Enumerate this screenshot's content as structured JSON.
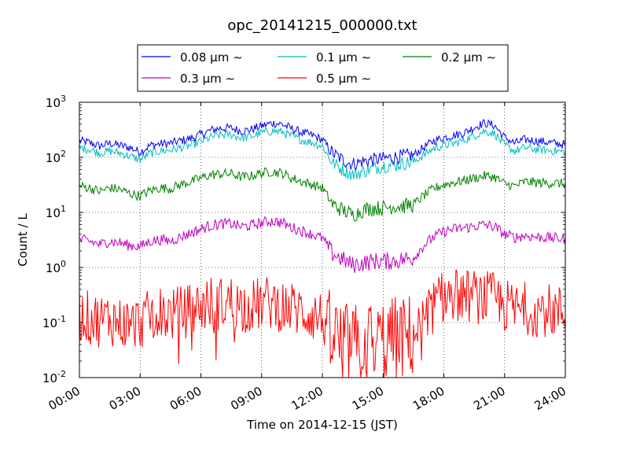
{
  "chart_data": {
    "type": "line",
    "title": "opc_20141215_000000.txt",
    "xlabel": "Time on 2014-12-15 (JST)",
    "ylabel": "Count / L",
    "x_unit": "hours",
    "xlim": [
      0,
      24
    ],
    "ylim": [
      0.01,
      1000
    ],
    "yscale": "log",
    "grid": true,
    "legend_position": "top-center-outside",
    "x_ticks": [
      {
        "value": 0,
        "label": "00:00"
      },
      {
        "value": 3,
        "label": "03:00"
      },
      {
        "value": 6,
        "label": "06:00"
      },
      {
        "value": 9,
        "label": "09:00"
      },
      {
        "value": 12,
        "label": "12:00"
      },
      {
        "value": 15,
        "label": "15:00"
      },
      {
        "value": 18,
        "label": "18:00"
      },
      {
        "value": 21,
        "label": "21:00"
      },
      {
        "value": 24,
        "label": "24:00"
      }
    ],
    "y_ticks": [
      {
        "value": 0.01,
        "base": "10",
        "exp": "-2"
      },
      {
        "value": 0.1,
        "base": "10",
        "exp": "-1"
      },
      {
        "value": 1,
        "base": "10",
        "exp": "0"
      },
      {
        "value": 10,
        "base": "10",
        "exp": "1"
      },
      {
        "value": 100,
        "base": "10",
        "exp": "2"
      },
      {
        "value": 1000,
        "base": "10",
        "exp": "3"
      }
    ],
    "series": [
      {
        "name": "0.08 μm ∼",
        "color": "#0000ff",
        "jitter": 0.08,
        "x": [
          0,
          0.5,
          1,
          1.5,
          2,
          2.5,
          3,
          3.5,
          4,
          4.5,
          5,
          5.5,
          6,
          6.5,
          7,
          7.5,
          8,
          8.5,
          9,
          9.5,
          10,
          10.5,
          11,
          11.5,
          12,
          12.5,
          13,
          13.5,
          14,
          14.5,
          15,
          15.5,
          16,
          16.5,
          17,
          17.5,
          18,
          18.5,
          19,
          19.5,
          20,
          20.5,
          21,
          21.5,
          22,
          22.5,
          23,
          23.5,
          24
        ],
        "y": [
          200,
          185,
          160,
          180,
          165,
          150,
          125,
          165,
          175,
          180,
          200,
          220,
          260,
          310,
          340,
          340,
          300,
          320,
          370,
          420,
          400,
          330,
          280,
          250,
          210,
          120,
          90,
          75,
          85,
          90,
          95,
          100,
          105,
          110,
          150,
          200,
          230,
          250,
          280,
          350,
          420,
          380,
          230,
          180,
          210,
          200,
          190,
          180,
          170
        ]
      },
      {
        "name": "0.1 μm ∼",
        "color": "#00bfbf",
        "jitter": 0.08,
        "x": [
          0,
          0.5,
          1,
          1.5,
          2,
          2.5,
          3,
          3.5,
          4,
          4.5,
          5,
          5.5,
          6,
          6.5,
          7,
          7.5,
          8,
          8.5,
          9,
          9.5,
          10,
          10.5,
          11,
          11.5,
          12,
          12.5,
          13,
          13.5,
          14,
          14.5,
          15,
          15.5,
          16,
          16.5,
          17,
          17.5,
          18,
          18.5,
          19,
          19.5,
          20,
          20.5,
          21,
          21.5,
          22,
          22.5,
          23,
          23.5,
          24
        ],
        "y": [
          150,
          140,
          120,
          130,
          120,
          105,
          90,
          120,
          130,
          135,
          150,
          165,
          195,
          230,
          255,
          260,
          225,
          240,
          280,
          300,
          290,
          240,
          205,
          185,
          160,
          80,
          60,
          48,
          55,
          63,
          70,
          72,
          77,
          82,
          110,
          145,
          165,
          180,
          205,
          250,
          300,
          270,
          165,
          130,
          150,
          140,
          135,
          130,
          125
        ]
      },
      {
        "name": "0.2 μm ∼",
        "color": "#008000",
        "jitter": 0.09,
        "x": [
          0,
          0.5,
          1,
          1.5,
          2,
          2.5,
          3,
          3.5,
          4,
          4.5,
          5,
          5.5,
          6,
          6.5,
          7,
          7.5,
          8,
          8.5,
          9,
          9.5,
          10,
          10.5,
          11,
          11.5,
          12,
          12.5,
          13,
          13.5,
          14,
          14.5,
          15,
          15.5,
          16,
          16.5,
          17,
          17.5,
          18,
          18.5,
          19,
          19.5,
          20,
          20.5,
          21,
          21.5,
          22,
          22.5,
          23,
          23.5,
          24
        ],
        "y": [
          30,
          28,
          24,
          28,
          26,
          22,
          20,
          25,
          28,
          27,
          32,
          36,
          42,
          48,
          50,
          50,
          44,
          46,
          52,
          55,
          52,
          42,
          36,
          32,
          28,
          14,
          11,
          9,
          11,
          12,
          12,
          13,
          13,
          14,
          20,
          27,
          32,
          35,
          38,
          42,
          46,
          44,
          33,
          30,
          36,
          35,
          34,
          34,
          33
        ]
      },
      {
        "name": "0.3 μm ∼",
        "color": "#bf00bf",
        "jitter": 0.1,
        "x": [
          0,
          0.5,
          1,
          1.5,
          2,
          2.5,
          3,
          3.5,
          4,
          4.5,
          5,
          5.5,
          6,
          6.5,
          7,
          7.5,
          8,
          8.5,
          9,
          9.5,
          10,
          10.5,
          11,
          11.5,
          12,
          12.5,
          13,
          13.5,
          14,
          14.5,
          15,
          15.5,
          16,
          16.5,
          17,
          17.5,
          18,
          18.5,
          19,
          19.5,
          20,
          20.5,
          21,
          21.5,
          22,
          22.5,
          23,
          23.5,
          24
        ],
        "y": [
          3.2,
          3.0,
          2.6,
          3.0,
          2.8,
          2.5,
          2.4,
          3.0,
          3.2,
          3.0,
          3.6,
          4.2,
          5.0,
          5.8,
          6.2,
          6.2,
          5.5,
          5.8,
          6.5,
          7.0,
          6.5,
          5.3,
          4.6,
          4.0,
          3.4,
          1.8,
          1.4,
          1.1,
          1.2,
          1.3,
          1.3,
          1.3,
          1.4,
          1.5,
          2.5,
          3.6,
          4.5,
          5.0,
          5.2,
          5.6,
          6.0,
          5.5,
          4.0,
          3.5,
          3.8,
          3.6,
          3.5,
          3.4,
          3.3
        ]
      },
      {
        "name": "0.5 μm ∼",
        "color": "#ff0000",
        "jitter": 0.5,
        "x": [
          0,
          0.5,
          1,
          1.5,
          2,
          2.5,
          3,
          3.5,
          4,
          4.5,
          5,
          5.5,
          6,
          6.5,
          7,
          7.5,
          8,
          8.5,
          9,
          9.5,
          10,
          10.5,
          11,
          11.5,
          12,
          12.5,
          13,
          13.5,
          14,
          14.5,
          15,
          15.5,
          16,
          16.5,
          17,
          17.5,
          18,
          18.5,
          19,
          19.5,
          20,
          20.5,
          21,
          21.5,
          22,
          22.5,
          23,
          23.5,
          24
        ],
        "y": [
          0.14,
          0.12,
          0.11,
          0.12,
          0.1,
          0.09,
          0.1,
          0.13,
          0.15,
          0.14,
          0.15,
          0.17,
          0.2,
          0.23,
          0.22,
          0.24,
          0.2,
          0.2,
          0.22,
          0.23,
          0.2,
          0.18,
          0.16,
          0.14,
          0.12,
          0.06,
          0.04,
          0.035,
          0.04,
          0.045,
          0.045,
          0.05,
          0.05,
          0.06,
          0.1,
          0.2,
          0.3,
          0.32,
          0.3,
          0.3,
          0.28,
          0.27,
          0.2,
          0.17,
          0.18,
          0.17,
          0.17,
          0.16,
          0.15
        ]
      }
    ]
  }
}
